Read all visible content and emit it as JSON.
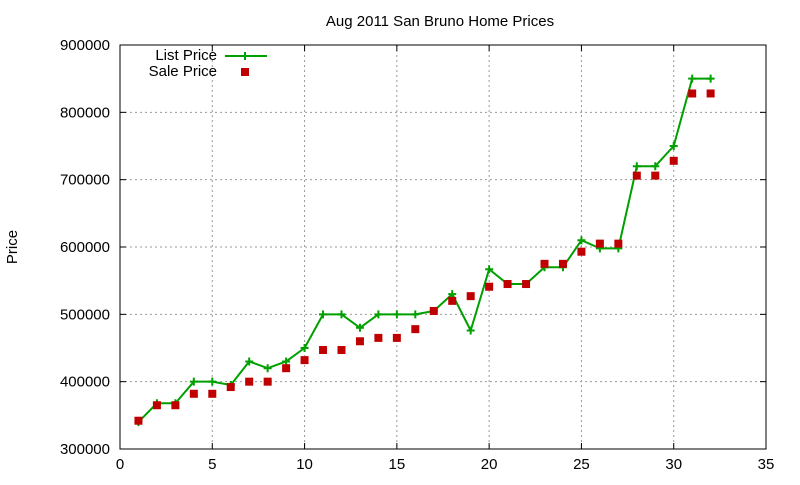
{
  "chart_data": {
    "type": "line",
    "title": "Aug 2011 San Bruno Home Prices",
    "xlabel": "",
    "ylabel": "Price",
    "xlim": [
      0,
      35
    ],
    "ylim": [
      300000,
      900000
    ],
    "xticks": [
      0,
      5,
      10,
      15,
      20,
      25,
      30,
      35
    ],
    "yticks": [
      300000,
      400000,
      500000,
      600000,
      700000,
      800000,
      900000
    ],
    "grid": true,
    "legend_position": "top-left",
    "x": [
      1,
      2,
      3,
      4,
      5,
      6,
      7,
      8,
      9,
      10,
      11,
      12,
      13,
      14,
      15,
      16,
      17,
      18,
      19,
      20,
      21,
      22,
      23,
      24,
      25,
      26,
      27,
      28,
      29,
      30,
      31,
      32
    ],
    "series": [
      {
        "name": "List Price",
        "style": "line-points",
        "color": "#00a000",
        "values": [
          340000,
          368000,
          368000,
          400000,
          400000,
          395000,
          430000,
          420000,
          430000,
          450000,
          500000,
          500000,
          480000,
          500000,
          500000,
          500000,
          505000,
          530000,
          476000,
          567000,
          545000,
          545000,
          570000,
          570000,
          610000,
          598000,
          598000,
          720000,
          720000,
          750000,
          850000,
          850000
        ]
      },
      {
        "name": "Sale Price",
        "style": "points",
        "color": "#c00000",
        "values": [
          342000,
          365000,
          365000,
          382000,
          382000,
          392000,
          400000,
          400000,
          420000,
          432000,
          447000,
          447000,
          460000,
          465000,
          465000,
          478000,
          505000,
          520000,
          527000,
          541000,
          545000,
          545000,
          575000,
          575000,
          593000,
          605000,
          605000,
          706000,
          706000,
          728000,
          828000,
          828000
        ]
      }
    ]
  }
}
